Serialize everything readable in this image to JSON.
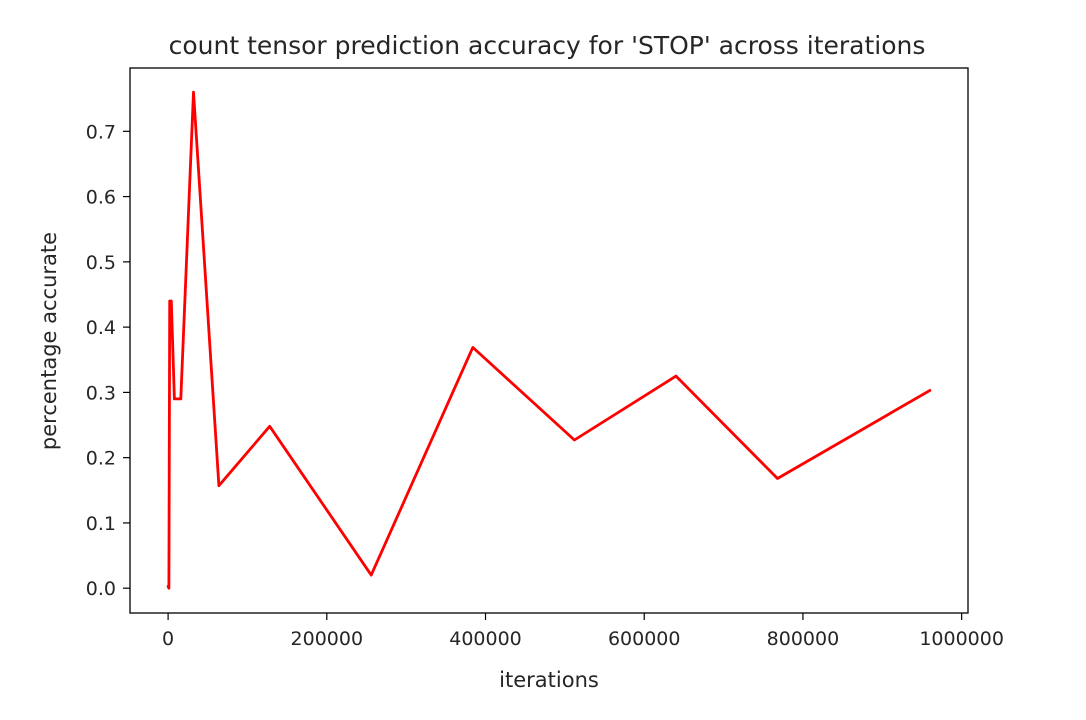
{
  "chart_data": {
    "type": "line",
    "title": "count tensor prediction accuracy for 'STOP' across iterations",
    "xlabel": "iterations",
    "ylabel": "percentage accurate",
    "xlim": [
      -48000,
      1008000
    ],
    "ylim": [
      -0.038,
      0.797
    ],
    "x_ticks": [
      0,
      200000,
      400000,
      600000,
      800000,
      1000000
    ],
    "x_tick_labels": [
      "0",
      "200000",
      "400000",
      "600000",
      "800000",
      "1000000"
    ],
    "y_ticks": [
      0.0,
      0.1,
      0.2,
      0.3,
      0.4,
      0.5,
      0.6,
      0.7
    ],
    "y_tick_labels": [
      "0.0",
      "0.1",
      "0.2",
      "0.3",
      "0.4",
      "0.5",
      "0.6",
      "0.7"
    ],
    "grid": false,
    "legend": "none",
    "series": [
      {
        "color": "#ff0000",
        "x": [
          0,
          1000,
          2000,
          4000,
          8000,
          16000,
          32000,
          64000,
          128000,
          256000,
          384000,
          512000,
          640000,
          768000,
          960000
        ],
        "y": [
          0.003,
          0.0,
          0.44,
          0.44,
          0.29,
          0.29,
          0.76,
          0.157,
          0.248,
          0.02,
          0.369,
          0.227,
          0.325,
          0.168,
          0.303
        ]
      }
    ]
  }
}
